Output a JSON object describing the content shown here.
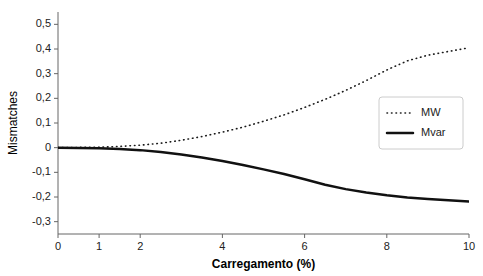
{
  "chart_data": {
    "type": "line",
    "xlabel": "Carregamento (%)",
    "ylabel": "Mismatches",
    "xlim": [
      0,
      10
    ],
    "ylim": [
      -0.35,
      0.55
    ],
    "xticks": [
      0,
      1,
      2,
      4,
      6,
      8,
      10
    ],
    "yticks": [
      {
        "value": -0.3,
        "label": "-0,3"
      },
      {
        "value": -0.2,
        "label": "-0,2"
      },
      {
        "value": -0.1,
        "label": "-0,1"
      },
      {
        "value": 0,
        "label": "0"
      },
      {
        "value": 0.1,
        "label": "0,1"
      },
      {
        "value": 0.2,
        "label": "0,2"
      },
      {
        "value": 0.3,
        "label": "0,3"
      },
      {
        "value": 0.4,
        "label": "0,4"
      },
      {
        "value": 0.5,
        "label": "0,5"
      }
    ],
    "x": [
      0,
      0.5,
      1.0,
      1.5,
      2.0,
      2.5,
      3.0,
      3.5,
      4.0,
      4.5,
      5.0,
      5.5,
      6.0,
      6.5,
      7.0,
      7.5,
      8.0,
      8.5,
      9.0,
      9.5,
      10.0
    ],
    "series": [
      {
        "name": "MW",
        "color": "#1a1a1a",
        "line_style": "dotted",
        "values": [
          0.0,
          0.001,
          0.002,
          0.005,
          0.01,
          0.018,
          0.03,
          0.045,
          0.063,
          0.083,
          0.107,
          0.133,
          0.163,
          0.196,
          0.232,
          0.272,
          0.315,
          0.352,
          0.375,
          0.39,
          0.405
        ]
      },
      {
        "name": "Mvar",
        "color": "#111111",
        "line_style": "solid",
        "values": [
          0.0,
          -0.001,
          -0.002,
          -0.005,
          -0.01,
          -0.018,
          -0.028,
          -0.04,
          -0.054,
          -0.07,
          -0.088,
          -0.107,
          -0.128,
          -0.15,
          -0.168,
          -0.182,
          -0.193,
          -0.202,
          -0.208,
          -0.213,
          -0.218
        ]
      }
    ],
    "legend": "right",
    "grid": false
  }
}
